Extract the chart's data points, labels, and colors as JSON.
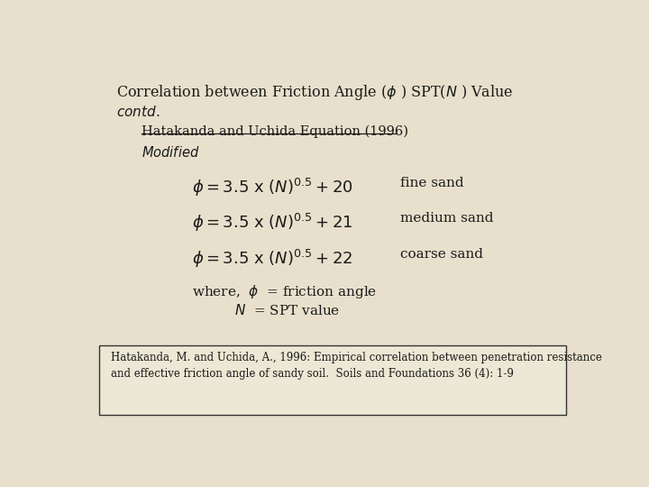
{
  "bg_color": "#e8e0cc",
  "text_color": "#1a1a1a",
  "ref_box_color": "#ede8d5",
  "ref_box_edge": "#333333",
  "title": "Correlation between Friction Angle ($\\phi$ ) SPT($N$ ) Value",
  "contd": "contd.",
  "subtitle": "Hatakanda and Uchida Equation (1996)",
  "subtitle2": "Modified",
  "eq1": "$\\phi = 3.5\\ \\mathrm{x}\\ (N)^{0.5} + 20$",
  "eq1_label": "fine sand",
  "eq2": "$\\phi = 3.5\\ \\mathrm{x}\\ (N)^{0.5} + 21$",
  "eq2_label": "medium sand",
  "eq3": "$\\phi = 3.5\\ \\mathrm{x}\\ (N)^{0.5} + 22$",
  "eq3_label": "coarse sand",
  "where1": "where,  $\\phi$  = friction angle",
  "where2": "$N$  = SPT value",
  "ref_line1": "Hatakanda, M. and Uchida, A., 1996: Empirical correlation between penetration resistance",
  "ref_line2": "and effective friction angle of sandy soil.  Soils and Foundations 36 (4): 1-9"
}
